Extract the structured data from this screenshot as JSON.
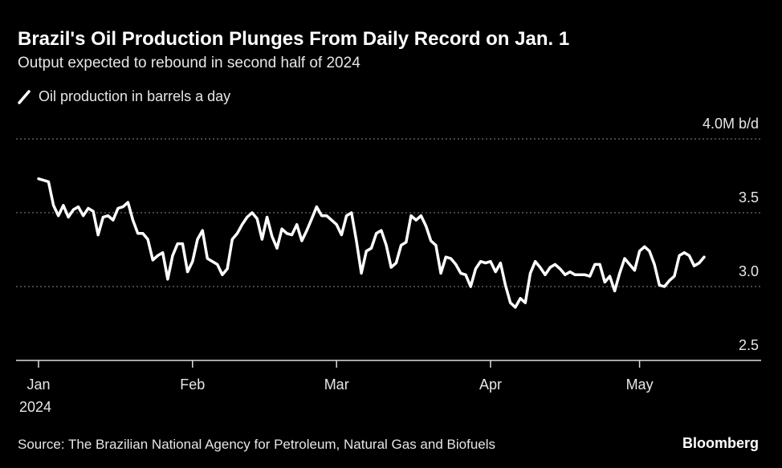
{
  "chart_data": {
    "type": "line",
    "title": "Brazil's Oil Production Plunges From Daily Record on Jan. 1",
    "subtitle": "Output expected to rebound in second half of 2024",
    "source": "Source: The Brazilian National Agency for Petroleum, Natural Gas and Biofuels",
    "brand": "Bloomberg",
    "year_label": "2024",
    "categories": [
      "Jan",
      null,
      null,
      null,
      null,
      null,
      null,
      null,
      null,
      null,
      null,
      null,
      null,
      null,
      null,
      null,
      null,
      null,
      null,
      null,
      null,
      null,
      null,
      null,
      null,
      null,
      null,
      null,
      null,
      null,
      null,
      "Feb",
      null,
      null,
      null,
      null,
      null,
      null,
      null,
      null,
      null,
      null,
      null,
      null,
      null,
      null,
      null,
      null,
      null,
      null,
      null,
      null,
      null,
      null,
      null,
      null,
      null,
      null,
      null,
      null,
      "Mar",
      null,
      null,
      null,
      null,
      null,
      null,
      null,
      null,
      null,
      null,
      null,
      null,
      null,
      null,
      null,
      null,
      null,
      null,
      null,
      null,
      null,
      null,
      null,
      null,
      null,
      null,
      null,
      null,
      null,
      null,
      "Apr",
      null,
      null,
      null,
      null,
      null,
      null,
      null,
      null,
      null,
      null,
      null,
      null,
      null,
      null,
      null,
      null,
      null,
      null,
      null,
      null,
      null,
      null,
      null,
      null,
      null,
      null,
      null,
      null,
      null,
      "May",
      null,
      null,
      null,
      null,
      null,
      null,
      null,
      null,
      null,
      null,
      null,
      null,
      null
    ],
    "series": [
      {
        "name": "Oil production in barrels a day",
        "color": "#ffffff",
        "values": [
          3.73,
          3.72,
          3.71,
          3.55,
          3.48,
          3.55,
          3.47,
          3.52,
          3.54,
          3.48,
          3.53,
          3.51,
          3.35,
          3.47,
          3.48,
          3.45,
          3.53,
          3.54,
          3.57,
          3.45,
          3.36,
          3.36,
          3.32,
          3.18,
          3.21,
          3.23,
          3.05,
          3.21,
          3.29,
          3.29,
          3.1,
          3.17,
          3.32,
          3.38,
          3.19,
          3.17,
          3.15,
          3.08,
          3.12,
          3.32,
          3.36,
          3.42,
          3.47,
          3.5,
          3.46,
          3.32,
          3.47,
          3.34,
          3.26,
          3.39,
          3.36,
          3.35,
          3.42,
          3.31,
          3.38,
          3.46,
          3.54,
          3.48,
          3.48,
          3.45,
          3.42,
          3.35,
          3.48,
          3.5,
          3.31,
          3.09,
          3.24,
          3.26,
          3.36,
          3.38,
          3.28,
          3.13,
          3.16,
          3.28,
          3.3,
          3.48,
          3.45,
          3.48,
          3.41,
          3.31,
          3.28,
          3.09,
          3.2,
          3.19,
          3.15,
          3.09,
          3.08,
          3.0,
          3.12,
          3.17,
          3.16,
          3.17,
          3.1,
          3.16,
          3.01,
          2.89,
          2.86,
          2.92,
          2.89,
          3.09,
          3.17,
          3.13,
          3.08,
          3.13,
          3.15,
          3.12,
          3.08,
          3.1,
          3.08,
          3.08,
          3.08,
          3.07,
          3.15,
          3.15,
          3.03,
          3.07,
          2.97,
          3.09,
          3.19,
          3.15,
          3.11,
          3.24,
          3.27,
          3.24,
          3.15,
          3.01,
          3.0,
          3.04,
          3.07,
          3.21,
          3.23,
          3.21,
          3.14,
          3.16,
          3.2
        ]
      }
    ],
    "ylim": [
      2.5,
      4.0
    ],
    "yticks": [
      {
        "value": 4.0,
        "label": "4.0M b/d"
      },
      3.5,
      {
        "value": 3.0,
        "label": "3.0"
      },
      2.5
    ],
    "grid": true
  }
}
